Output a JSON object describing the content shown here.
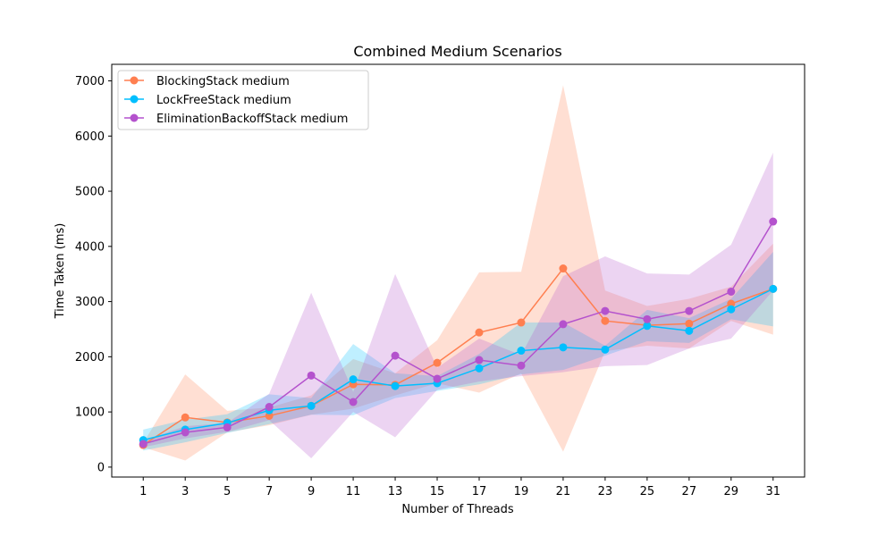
{
  "chart_data": {
    "type": "line",
    "title": "Combined Medium Scenarios",
    "xlabel": "Number of Threads",
    "ylabel": "Time Taken (ms)",
    "x": [
      1,
      3,
      5,
      7,
      9,
      11,
      13,
      15,
      17,
      19,
      21,
      23,
      25,
      27,
      29,
      31
    ],
    "xlim": [
      -0.5,
      32.5
    ],
    "ylim": [
      -180,
      7300
    ],
    "yticks": [
      0,
      1000,
      2000,
      3000,
      4000,
      5000,
      6000,
      7000
    ],
    "grid": false,
    "legend_position": "top-left",
    "series": [
      {
        "name": "BlockingStack medium",
        "color": "#FF7F50",
        "values": [
          400,
          900,
          810,
          930,
          1110,
          1500,
          1490,
          1890,
          2440,
          2620,
          3600,
          2650,
          2570,
          2600,
          2960,
          3230
        ],
        "lower": [
          360,
          120,
          630,
          760,
          950,
          1060,
          1300,
          1520,
          1350,
          1700,
          280,
          2100,
          2200,
          2150,
          2650,
          2400
        ],
        "upper": [
          440,
          1680,
          1020,
          1080,
          1300,
          1960,
          1700,
          2300,
          3530,
          3540,
          6920,
          3200,
          2920,
          3050,
          3270,
          4050
        ]
      },
      {
        "name": "LockFreeStack medium",
        "color": "#00BFFF",
        "values": [
          490,
          680,
          800,
          1030,
          1110,
          1590,
          1470,
          1520,
          1790,
          2110,
          2170,
          2130,
          2560,
          2470,
          2860,
          3230
        ],
        "lower": [
          300,
          450,
          620,
          780,
          950,
          940,
          1250,
          1380,
          1500,
          1680,
          1760,
          2020,
          2280,
          2250,
          2680,
          2550
        ],
        "upper": [
          680,
          860,
          960,
          1320,
          1250,
          2230,
          1700,
          1650,
          2050,
          2620,
          2620,
          2200,
          2850,
          2700,
          3050,
          3900
        ]
      },
      {
        "name": "EliminationBackoffStack medium",
        "color": "#B452CD",
        "values": [
          420,
          630,
          720,
          1090,
          1660,
          1180,
          2020,
          1600,
          1940,
          1840,
          2590,
          2830,
          2680,
          2830,
          3180,
          4450
        ]
      }
    ],
    "purple_band": {
      "lower": [
        360,
        520,
        640,
        850,
        160,
        1000,
        540,
        1400,
        1550,
        1650,
        1720,
        1830,
        1850,
        2150,
        2330,
        3200
      ],
      "upper": [
        480,
        740,
        800,
        1330,
        3160,
        1360,
        3500,
        1800,
        2330,
        2030,
        3460,
        3820,
        3510,
        3490,
        4030,
        5700
      ]
    }
  }
}
